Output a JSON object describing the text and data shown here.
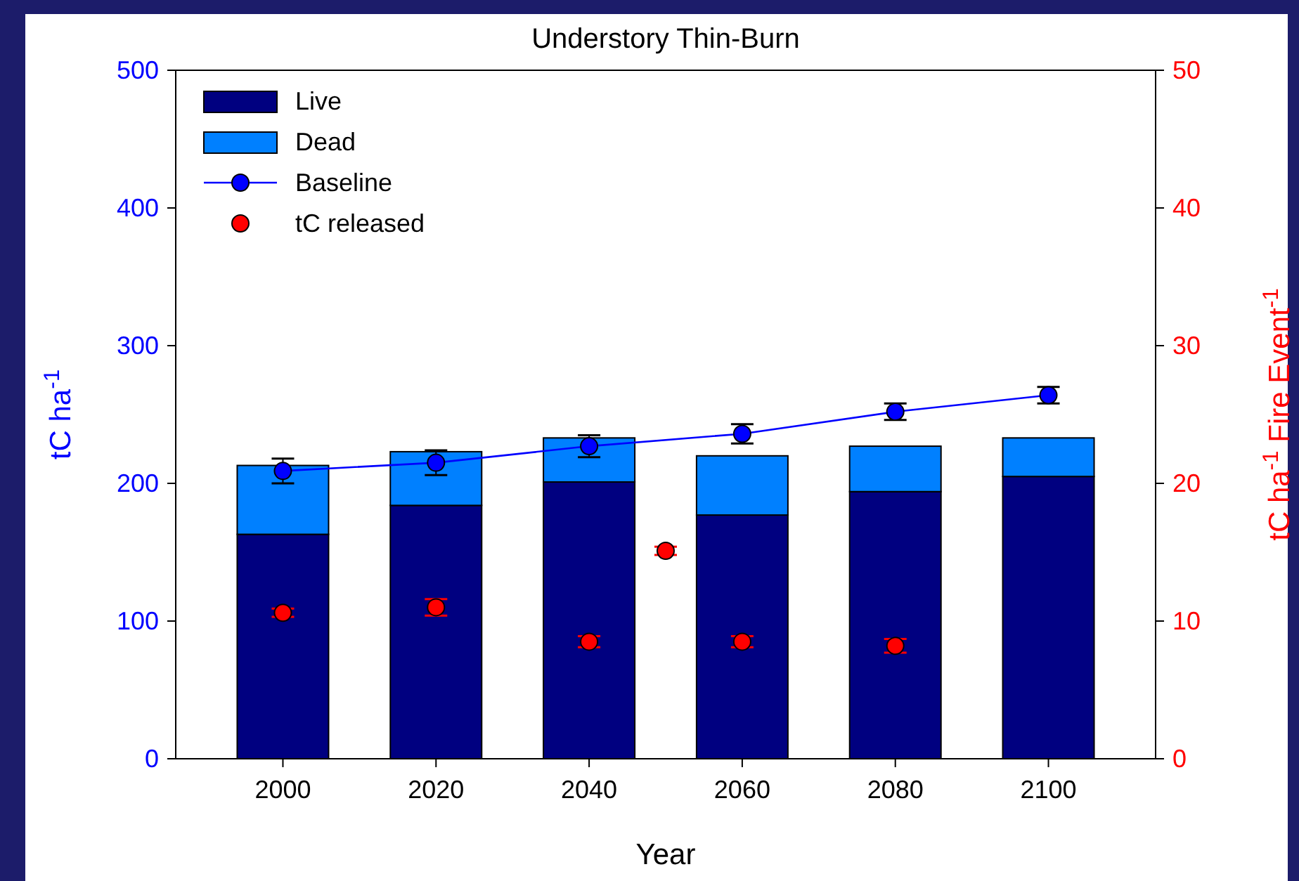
{
  "chart_data": {
    "type": "bar",
    "title": "Understory Thin-Burn",
    "xlabel": "Year",
    "ylabel": "tC ha$^{-1}$",
    "y2label": "tC ha$^{-1}$ Fire Event$^{-1}$",
    "x": [
      2000,
      2020,
      2040,
      2060,
      2080,
      2100
    ],
    "stacked": true,
    "series": [
      {
        "name": "Live",
        "color": "#000080",
        "values": [
          163,
          184,
          201,
          177,
          194,
          205
        ]
      },
      {
        "name": "Dead",
        "color": "#0080ff",
        "values": [
          50,
          39,
          32,
          43,
          33,
          28
        ]
      },
      {
        "name": "Baseline",
        "type": "line",
        "color": "#0000ff",
        "marker": "circle",
        "values": [
          209,
          215,
          227,
          236,
          252,
          264
        ],
        "errors": [
          9,
          9,
          8,
          7,
          6,
          6
        ]
      },
      {
        "name": "tC released",
        "type": "scatter",
        "axis": "y2",
        "color": "#ff0000",
        "marker": "circle",
        "x": [
          2000,
          2020,
          2040,
          2050,
          2060,
          2080
        ],
        "values": [
          10.6,
          11.0,
          8.5,
          15.1,
          8.5,
          8.2
        ],
        "errors": [
          0.3,
          0.6,
          0.4,
          0.3,
          0.4,
          0.5
        ]
      }
    ],
    "xlim": [
      1986,
      2114
    ],
    "xticks": [
      2000,
      2020,
      2040,
      2060,
      2080,
      2100
    ],
    "ylim": [
      0,
      500
    ],
    "yticks": [
      0,
      100,
      200,
      300,
      400,
      500
    ],
    "y2lim": [
      0,
      50
    ],
    "y2ticks": [
      0,
      10,
      20,
      30,
      40,
      50
    ],
    "legend": "top left",
    "grid": false
  }
}
